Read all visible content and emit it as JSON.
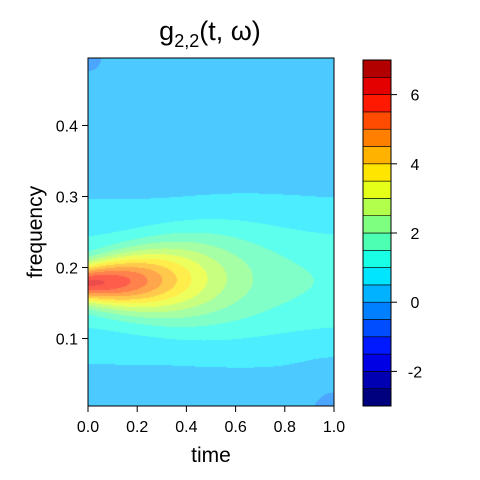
{
  "chart_data": {
    "type": "heatmap",
    "title_main": "g",
    "title_sub": "2,2",
    "title_args": "(t, ω)",
    "xlabel": "time",
    "ylabel": "frequency",
    "xlim": [
      0,
      1
    ],
    "ylim": [
      0.005,
      0.495
    ],
    "x_ticks": [
      0.0,
      0.2,
      0.4,
      0.6,
      0.8,
      1.0
    ],
    "x_tick_labels": [
      "0.0",
      "0.2",
      "0.4",
      "0.6",
      "0.8",
      "1.0"
    ],
    "y_ticks": [
      0.1,
      0.2,
      0.3,
      0.4
    ],
    "y_tick_labels": [
      "0.1",
      "0.2",
      "0.3",
      "0.4"
    ],
    "levels": [
      -3,
      -2.5,
      -2,
      -1.5,
      -1,
      -0.5,
      0,
      0.5,
      1,
      1.5,
      2,
      2.5,
      3,
      3.5,
      4,
      4.5,
      5,
      5.5,
      6,
      6.5,
      7
    ],
    "level_colors": [
      "#00007F",
      "#0000B2",
      "#0000E5",
      "#0019FF",
      "#004CFF",
      "#007FFF",
      "#00B2FF",
      "#00E5FF",
      "#19FFE5",
      "#4CFFB2",
      "#7FFF7F",
      "#B2FF4C",
      "#E5FF19",
      "#FFE500",
      "#FFB200",
      "#FF7F00",
      "#FF4C00",
      "#FF1900",
      "#E50000",
      "#B20000"
    ],
    "colorbar_ticks": [
      -2,
      0,
      2,
      4,
      6
    ],
    "colorbar_tick_labels": [
      "-2",
      "0",
      "2",
      "4",
      "6"
    ],
    "fill_opacity": 0.7
  }
}
